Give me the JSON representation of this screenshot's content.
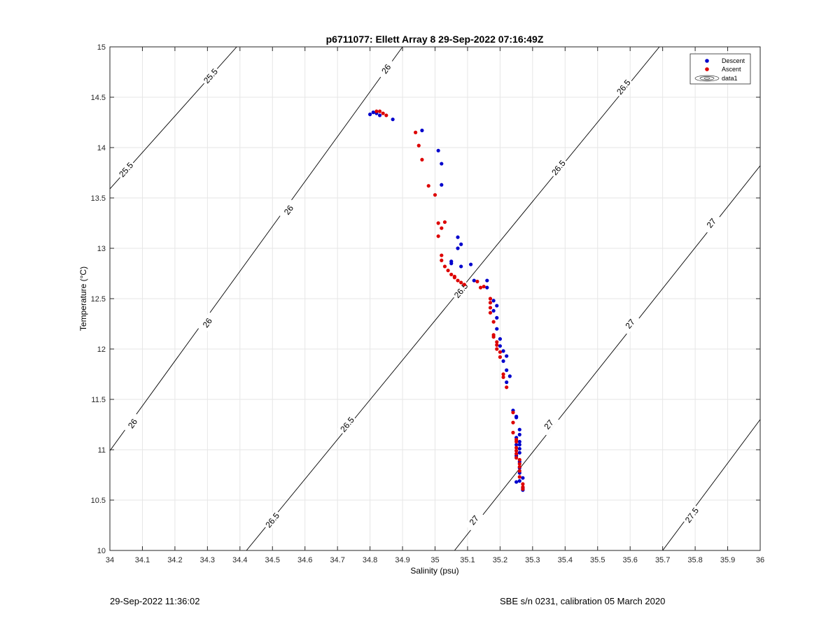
{
  "chart_data": {
    "type": "scatter",
    "title": "p6711077: Ellett Array 8 29-Sep-2022 07:16:49Z",
    "xlabel": "Salinity (psu)",
    "ylabel": "Temperature (°C)",
    "xlim": [
      34,
      36
    ],
    "ylim": [
      10,
      15
    ],
    "xticks": [
      34,
      34.1,
      34.2,
      34.3,
      34.4,
      34.5,
      34.6,
      34.7,
      34.8,
      34.9,
      35,
      35.1,
      35.2,
      35.3,
      35.4,
      35.5,
      35.6,
      35.7,
      35.8,
      35.9,
      36
    ],
    "yticks": [
      10,
      10.5,
      11,
      11.5,
      12,
      12.5,
      13,
      13.5,
      14,
      14.5,
      15
    ],
    "grid": true,
    "legend_position": "top-right",
    "legend": [
      "Descent",
      "Ascent",
      "data1"
    ],
    "series": [
      {
        "name": "Descent",
        "color": "#0000cc",
        "points": [
          [
            34.8,
            14.33
          ],
          [
            34.81,
            14.35
          ],
          [
            34.82,
            14.34
          ],
          [
            34.83,
            14.32
          ],
          [
            34.87,
            14.28
          ],
          [
            34.96,
            14.17
          ],
          [
            35.01,
            13.97
          ],
          [
            35.02,
            13.84
          ],
          [
            35.02,
            13.63
          ],
          [
            35.07,
            13.11
          ],
          [
            35.08,
            13.04
          ],
          [
            35.07,
            13.0
          ],
          [
            35.05,
            12.87
          ],
          [
            35.05,
            12.85
          ],
          [
            35.11,
            12.84
          ],
          [
            35.08,
            12.82
          ],
          [
            35.16,
            12.68
          ],
          [
            35.12,
            12.68
          ],
          [
            35.16,
            12.61
          ],
          [
            35.18,
            12.48
          ],
          [
            35.19,
            12.43
          ],
          [
            35.18,
            12.38
          ],
          [
            35.19,
            12.31
          ],
          [
            35.19,
            12.2
          ],
          [
            35.2,
            12.1
          ],
          [
            35.2,
            12.03
          ],
          [
            35.21,
            11.98
          ],
          [
            35.22,
            11.93
          ],
          [
            35.21,
            11.88
          ],
          [
            35.22,
            11.79
          ],
          [
            35.23,
            11.73
          ],
          [
            35.22,
            11.67
          ],
          [
            35.24,
            11.39
          ],
          [
            35.25,
            11.33
          ],
          [
            35.25,
            11.32
          ],
          [
            35.26,
            11.2
          ],
          [
            35.26,
            11.15
          ],
          [
            35.25,
            11.12
          ],
          [
            35.26,
            11.08
          ],
          [
            35.26,
            11.05
          ],
          [
            35.25,
            11.05
          ],
          [
            35.26,
            11.01
          ],
          [
            35.26,
            10.97
          ],
          [
            35.25,
            10.94
          ],
          [
            35.26,
            10.88
          ],
          [
            35.26,
            10.82
          ],
          [
            35.26,
            10.77
          ],
          [
            35.27,
            10.72
          ],
          [
            35.26,
            10.69
          ],
          [
            35.25,
            10.68
          ],
          [
            35.27,
            10.62
          ],
          [
            35.27,
            10.6
          ]
        ]
      },
      {
        "name": "Ascent",
        "color": "#dd0000",
        "points": [
          [
            34.82,
            14.36
          ],
          [
            34.83,
            14.36
          ],
          [
            34.84,
            14.34
          ],
          [
            34.85,
            14.32
          ],
          [
            34.94,
            14.15
          ],
          [
            34.95,
            14.02
          ],
          [
            34.96,
            13.88
          ],
          [
            34.98,
            13.62
          ],
          [
            35.0,
            13.53
          ],
          [
            35.01,
            13.25
          ],
          [
            35.03,
            13.26
          ],
          [
            35.02,
            13.2
          ],
          [
            35.01,
            13.12
          ],
          [
            35.02,
            12.93
          ],
          [
            35.02,
            12.88
          ],
          [
            35.03,
            12.82
          ],
          [
            35.04,
            12.78
          ],
          [
            35.05,
            12.74
          ],
          [
            35.06,
            12.72
          ],
          [
            35.06,
            12.71
          ],
          [
            35.07,
            12.68
          ],
          [
            35.08,
            12.66
          ],
          [
            35.09,
            12.64
          ],
          [
            35.13,
            12.67
          ],
          [
            35.15,
            12.62
          ],
          [
            35.14,
            12.61
          ],
          [
            35.17,
            12.5
          ],
          [
            35.17,
            12.46
          ],
          [
            35.17,
            12.41
          ],
          [
            35.17,
            12.36
          ],
          [
            35.18,
            12.27
          ],
          [
            35.18,
            12.14
          ],
          [
            35.18,
            12.12
          ],
          [
            35.19,
            12.07
          ],
          [
            35.19,
            12.04
          ],
          [
            35.19,
            12.0
          ],
          [
            35.2,
            11.97
          ],
          [
            35.2,
            11.92
          ],
          [
            35.21,
            11.75
          ],
          [
            35.21,
            11.72
          ],
          [
            35.22,
            11.62
          ],
          [
            35.24,
            11.37
          ],
          [
            35.24,
            11.27
          ],
          [
            35.24,
            11.17
          ],
          [
            35.25,
            11.1
          ],
          [
            35.25,
            11.08
          ],
          [
            35.25,
            11.02
          ],
          [
            35.25,
            10.99
          ],
          [
            35.25,
            10.96
          ],
          [
            35.25,
            10.92
          ],
          [
            35.26,
            10.9
          ],
          [
            35.26,
            10.86
          ],
          [
            35.26,
            10.83
          ],
          [
            35.26,
            10.79
          ],
          [
            35.26,
            10.73
          ],
          [
            35.27,
            10.66
          ],
          [
            35.27,
            10.63
          ],
          [
            35.27,
            10.61
          ]
        ]
      }
    ],
    "contour_lines": [
      {
        "label": "25.5",
        "points": [
          [
            34,
            13.59
          ],
          [
            34.39,
            15
          ]
        ],
        "label_at": [
          [
            34.05,
            13.78
          ],
          [
            34.31,
            14.71
          ]
        ]
      },
      {
        "label": "26",
        "points": [
          [
            34,
            10.99
          ],
          [
            34.9,
            15
          ]
        ],
        "label_at": [
          [
            34.07,
            11.26
          ],
          [
            34.3,
            12.26
          ],
          [
            34.55,
            13.38
          ],
          [
            34.85,
            14.78
          ]
        ]
      },
      {
        "label": "26.5",
        "points": [
          [
            34.42,
            10
          ],
          [
            35.69,
            15
          ]
        ],
        "label_at": [
          [
            34.5,
            10.3
          ],
          [
            34.73,
            11.25
          ],
          [
            35.08,
            12.58
          ],
          [
            35.38,
            13.8
          ],
          [
            35.58,
            14.6
          ]
        ]
      },
      {
        "label": "27",
        "points": [
          [
            35.06,
            10
          ],
          [
            36,
            13.82
          ]
        ],
        "label_at": [
          [
            35.12,
            10.3
          ],
          [
            35.35,
            11.25
          ],
          [
            35.6,
            12.25
          ],
          [
            35.85,
            13.25
          ]
        ]
      },
      {
        "label": "27.5",
        "points": [
          [
            35.7,
            10
          ],
          [
            36,
            11.3
          ]
        ],
        "label_at": [
          [
            35.79,
            10.35
          ]
        ]
      }
    ]
  },
  "footer": {
    "left": "29-Sep-2022 11:36:02",
    "right": "SBE s/n 0231, calibration 05 March 2020"
  }
}
